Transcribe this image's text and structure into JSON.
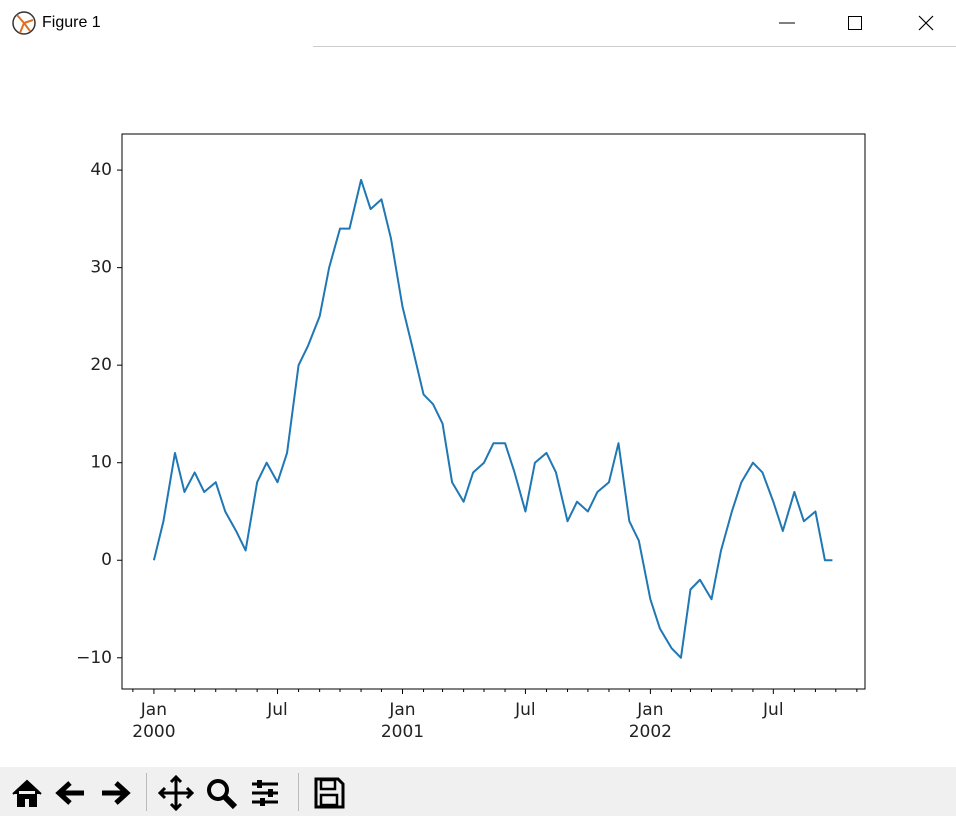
{
  "window": {
    "title": "Figure 1"
  },
  "chart_data": {
    "type": "line",
    "color": "#1f77b4",
    "x": [
      "2000-01-01",
      "2000-01-15",
      "2000-02-01",
      "2000-02-15",
      "2000-03-01",
      "2000-03-15",
      "2000-04-01",
      "2000-04-15",
      "2000-05-01",
      "2000-05-15",
      "2000-06-01",
      "2000-06-15",
      "2000-07-01",
      "2000-07-15",
      "2000-08-01",
      "2000-08-15",
      "2000-09-01",
      "2000-09-15",
      "2000-10-01",
      "2000-10-15",
      "2000-11-01",
      "2000-11-15",
      "2000-12-01",
      "2000-12-15",
      "2001-01-01",
      "2001-01-15",
      "2001-02-01",
      "2001-02-15",
      "2001-03-01",
      "2001-03-15",
      "2001-04-01",
      "2001-04-15",
      "2001-05-01",
      "2001-05-15",
      "2001-06-01",
      "2001-06-15",
      "2001-07-01",
      "2001-07-15",
      "2001-08-01",
      "2001-08-15",
      "2001-09-01",
      "2001-09-15",
      "2001-10-01",
      "2001-10-15",
      "2001-11-01",
      "2001-11-15",
      "2001-12-01",
      "2001-12-15",
      "2002-01-01",
      "2002-01-15",
      "2002-02-01",
      "2002-02-15",
      "2002-03-01",
      "2002-03-15",
      "2002-04-01",
      "2002-04-15",
      "2002-05-01",
      "2002-05-15",
      "2002-06-01",
      "2002-06-15",
      "2002-07-01",
      "2002-07-15",
      "2002-08-01",
      "2002-08-15",
      "2002-09-01",
      "2002-09-15",
      "2002-09-26"
    ],
    "values": [
      0,
      4,
      11,
      7,
      9,
      7,
      8,
      5,
      3,
      1,
      8,
      10,
      8,
      11,
      20,
      22,
      25,
      30,
      34,
      34,
      39,
      36,
      37,
      33,
      26,
      22,
      17,
      16,
      14,
      8,
      6,
      9,
      10,
      12,
      12,
      9,
      5,
      10,
      11,
      9,
      4,
      6,
      5,
      7,
      8,
      12,
      4,
      2,
      -4,
      -7,
      -9,
      -10,
      -3,
      -2,
      -4,
      1,
      5,
      8,
      10,
      9,
      6,
      3,
      7,
      4,
      5,
      0,
      0
    ],
    "xlim": [
      "1999-11-15",
      "2002-11-13"
    ],
    "xticks": [
      {
        "value": "2000-01-01",
        "label": "Jan\n2000"
      },
      {
        "value": "2000-07-01",
        "label": "Jul"
      },
      {
        "value": "2001-01-01",
        "label": "Jan\n2001"
      },
      {
        "value": "2001-07-01",
        "label": "Jul"
      },
      {
        "value": "2002-01-01",
        "label": "Jan\n2002"
      },
      {
        "value": "2002-07-01",
        "label": "Jul"
      }
    ],
    "xminorticks": [
      "1999-12-01",
      "2000-02-01",
      "2000-03-01",
      "2000-04-01",
      "2000-05-01",
      "2000-06-01",
      "2000-08-01",
      "2000-09-01",
      "2000-10-01",
      "2000-11-01",
      "2000-12-01",
      "2001-02-01",
      "2001-03-01",
      "2001-04-01",
      "2001-05-01",
      "2001-06-01",
      "2001-08-01",
      "2001-09-01",
      "2001-10-01",
      "2001-11-01",
      "2001-12-01",
      "2002-02-01",
      "2002-03-01",
      "2002-04-01",
      "2002-05-01",
      "2002-06-01",
      "2002-08-01",
      "2002-09-01",
      "2002-10-01",
      "2002-11-01"
    ],
    "ylim": [
      -13.2,
      43.7
    ],
    "yticks": [
      {
        "value": -10,
        "label": "−10"
      },
      0,
      10,
      20,
      30,
      40
    ],
    "grid": false
  }
}
